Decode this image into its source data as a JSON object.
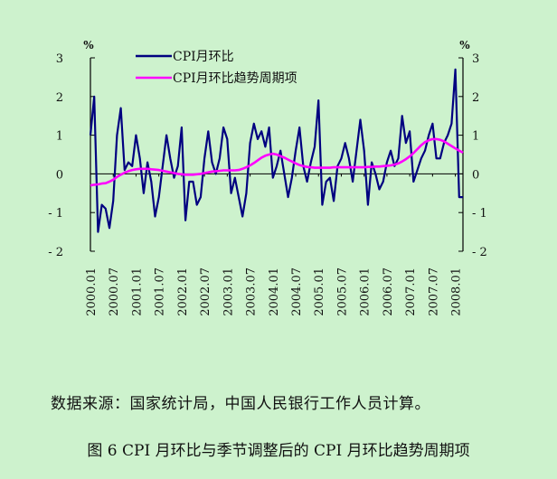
{
  "chart_data": {
    "type": "line",
    "unit_left": "%",
    "unit_right": "%",
    "ylim": [
      -2,
      3
    ],
    "y_ticks": [
      3,
      2,
      1,
      0,
      -1,
      -2
    ],
    "y_tick_labels": [
      "3",
      "2",
      "1",
      "0",
      "- 1",
      "- 2"
    ],
    "x_tick_labels": [
      "2000.01",
      "2000.07",
      "2001.01",
      "2001.07",
      "2002.01",
      "2002.07",
      "2003.01",
      "2003.07",
      "2004.01",
      "2004.07",
      "2005.01",
      "2005.07",
      "2006.01",
      "2006.07",
      "2007.01",
      "2007.07",
      "2008.01"
    ],
    "x": [
      "2000.01",
      "2000.02",
      "2000.03",
      "2000.04",
      "2000.05",
      "2000.06",
      "2000.07",
      "2000.08",
      "2000.09",
      "2000.10",
      "2000.11",
      "2000.12",
      "2001.01",
      "2001.02",
      "2001.03",
      "2001.04",
      "2001.05",
      "2001.06",
      "2001.07",
      "2001.08",
      "2001.09",
      "2001.10",
      "2001.11",
      "2001.12",
      "2002.01",
      "2002.02",
      "2002.03",
      "2002.04",
      "2002.05",
      "2002.06",
      "2002.07",
      "2002.08",
      "2002.09",
      "2002.10",
      "2002.11",
      "2002.12",
      "2003.01",
      "2003.02",
      "2003.03",
      "2003.04",
      "2003.05",
      "2003.06",
      "2003.07",
      "2003.08",
      "2003.09",
      "2003.10",
      "2003.11",
      "2003.12",
      "2004.01",
      "2004.02",
      "2004.03",
      "2004.04",
      "2004.05",
      "2004.06",
      "2004.07",
      "2004.08",
      "2004.09",
      "2004.10",
      "2004.11",
      "2004.12",
      "2005.01",
      "2005.02",
      "2005.03",
      "2005.04",
      "2005.05",
      "2005.06",
      "2005.07",
      "2005.08",
      "2005.09",
      "2005.10",
      "2005.11",
      "2005.12",
      "2006.01",
      "2006.02",
      "2006.03",
      "2006.04",
      "2006.05",
      "2006.06",
      "2006.07",
      "2006.08",
      "2006.09",
      "2006.10",
      "2006.11",
      "2006.12",
      "2007.01",
      "2007.02",
      "2007.03",
      "2007.04",
      "2007.05",
      "2007.06",
      "2007.07",
      "2007.08",
      "2007.09",
      "2007.10",
      "2007.11",
      "2007.12",
      "2008.01",
      "2008.02",
      "2008.03"
    ],
    "series": [
      {
        "name": "CPI月环比",
        "color": "#000080",
        "values": [
          1.0,
          2.0,
          -1.5,
          -0.8,
          -0.9,
          -1.4,
          -0.7,
          1.0,
          1.7,
          0.1,
          0.3,
          0.2,
          1.0,
          0.4,
          -0.5,
          0.3,
          -0.2,
          -1.1,
          -0.6,
          0.2,
          1.0,
          0.4,
          -0.1,
          0.2,
          1.2,
          -1.2,
          -0.2,
          -0.2,
          -0.8,
          -0.6,
          0.4,
          1.1,
          0.3,
          0.0,
          0.4,
          1.2,
          0.9,
          -0.5,
          -0.1,
          -0.6,
          -1.1,
          -0.5,
          0.8,
          1.3,
          0.9,
          1.1,
          0.7,
          1.2,
          -0.1,
          0.2,
          0.6,
          0.0,
          -0.6,
          -0.1,
          0.6,
          1.2,
          0.2,
          -0.2,
          0.3,
          0.7,
          1.9,
          -0.8,
          -0.2,
          -0.1,
          -0.7,
          0.2,
          0.4,
          0.8,
          0.4,
          -0.2,
          0.6,
          1.4,
          0.6,
          -0.8,
          0.3,
          0.0,
          -0.4,
          -0.2,
          0.3,
          0.6,
          0.2,
          0.4,
          1.5,
          0.8,
          1.1,
          -0.2,
          0.1,
          0.4,
          0.6,
          1.0,
          1.3,
          0.4,
          0.4,
          0.8,
          1.0,
          1.3,
          2.7,
          -0.6,
          -0.6
        ]
      },
      {
        "name": "CPI月环比趋势周期项",
        "color": "#ff00ff",
        "values": [
          -0.3,
          -0.28,
          -0.27,
          -0.25,
          -0.24,
          -0.2,
          -0.15,
          -0.08,
          -0.02,
          0.03,
          0.07,
          0.1,
          0.12,
          0.13,
          0.13,
          0.13,
          0.12,
          0.11,
          0.1,
          0.08,
          0.06,
          0.04,
          0.02,
          0.0,
          -0.01,
          -0.02,
          -0.02,
          -0.02,
          -0.01,
          0.0,
          0.02,
          0.04,
          0.06,
          0.07,
          0.08,
          0.09,
          0.09,
          0.09,
          0.09,
          0.1,
          0.13,
          0.17,
          0.22,
          0.28,
          0.35,
          0.42,
          0.47,
          0.5,
          0.52,
          0.5,
          0.46,
          0.42,
          0.37,
          0.32,
          0.27,
          0.23,
          0.2,
          0.18,
          0.17,
          0.16,
          0.16,
          0.16,
          0.16,
          0.16,
          0.17,
          0.17,
          0.17,
          0.17,
          0.17,
          0.17,
          0.17,
          0.17,
          0.17,
          0.18,
          0.18,
          0.19,
          0.19,
          0.2,
          0.21,
          0.22,
          0.24,
          0.27,
          0.32,
          0.38,
          0.45,
          0.54,
          0.64,
          0.74,
          0.82,
          0.87,
          0.9,
          0.9,
          0.88,
          0.84,
          0.78,
          0.72,
          0.66,
          0.6,
          0.55
        ]
      }
    ]
  },
  "source_text": "数据来源：国家统计局，中国人民银行工作人员计算。",
  "caption_text": "图 6 CPI 月环比与季节调整后的 CPI 月环比趋势周期项"
}
